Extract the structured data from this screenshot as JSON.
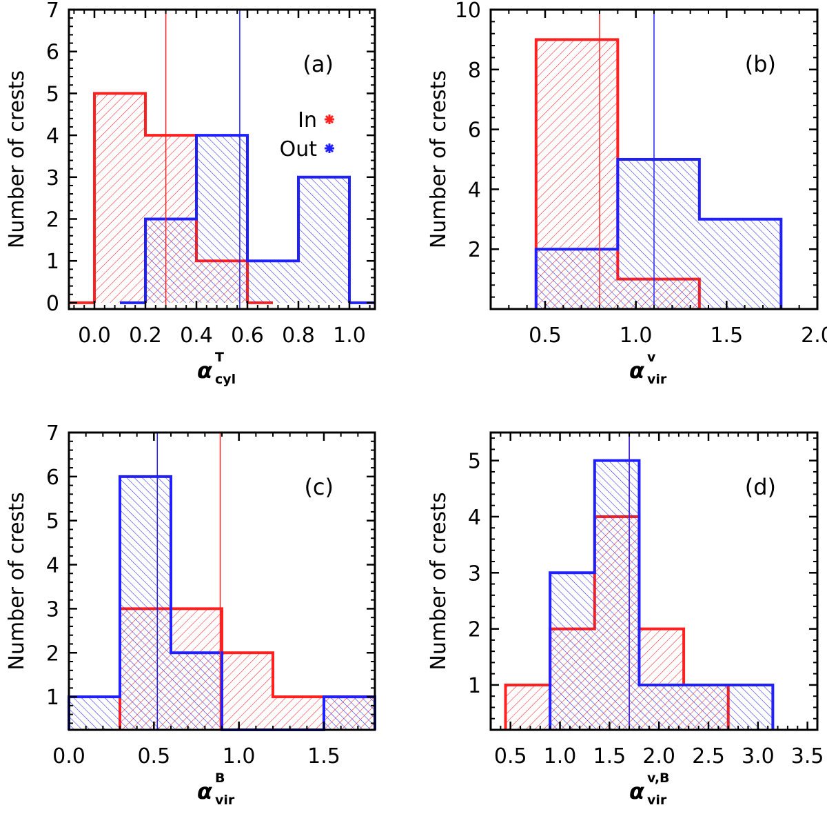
{
  "chart_data": [
    {
      "type": "bar",
      "panel": "(a)",
      "ylabel": "Number of crests",
      "xlabel": {
        "symbol": "α",
        "sup": "T",
        "sub": "cyl"
      },
      "xlim": [
        -0.1,
        1.1
      ],
      "ylim": [
        -0.15,
        7.0
      ],
      "xticks": [
        0.0,
        0.2,
        0.4,
        0.6,
        0.8,
        1.0
      ],
      "xtick_labels": [
        "0.0",
        "0.2",
        "0.4",
        "0.6",
        "0.8",
        "1.0"
      ],
      "yticks": [
        0,
        1,
        2,
        3,
        4,
        5,
        6,
        7
      ],
      "ytick_labels": [
        "0",
        "1",
        "2",
        "3",
        "4",
        "5",
        "6",
        "7"
      ],
      "legend": {
        "position": "top-right",
        "entries": [
          {
            "label": "In",
            "color": "#ff2020"
          },
          {
            "label": "Out",
            "color": "#2020ff"
          }
        ]
      },
      "series": [
        {
          "name": "In",
          "color": "#ff2020",
          "hatch": "forward",
          "edges": [
            0.0,
            0.2,
            0.4,
            0.6
          ],
          "values": [
            5,
            4,
            1
          ],
          "stub_left": 0.1,
          "stub_right": 0.1,
          "median": 0.28
        },
        {
          "name": "Out",
          "color": "#2020ff",
          "hatch": "backward",
          "edges": [
            0.2,
            0.4,
            0.6,
            0.8,
            1.0
          ],
          "values": [
            2,
            4,
            1,
            3
          ],
          "stub_left": 0.1,
          "stub_right": 0.1,
          "median": 0.57
        }
      ]
    },
    {
      "type": "bar",
      "panel": "(b)",
      "ylabel": "Number of crests",
      "xlabel": {
        "symbol": "α",
        "sup": "v",
        "sub": "vir"
      },
      "xlim": [
        0.2,
        2.0
      ],
      "ylim": [
        0.0,
        10.0
      ],
      "xticks": [
        0.5,
        1.0,
        1.5,
        2.0
      ],
      "xtick_labels": [
        "0.5",
        "1.0",
        "1.5",
        "2.0"
      ],
      "yticks": [
        2,
        4,
        6,
        8,
        10
      ],
      "ytick_labels": [
        "2",
        "4",
        "6",
        "8",
        "10"
      ],
      "series": [
        {
          "name": "In",
          "color": "#ff2020",
          "hatch": "forward",
          "edges": [
            0.45,
            0.9,
            1.35
          ],
          "values": [
            9,
            1
          ],
          "median": 0.8
        },
        {
          "name": "Out",
          "color": "#2020ff",
          "hatch": "backward",
          "edges": [
            0.45,
            0.9,
            1.35,
            1.8
          ],
          "values": [
            2,
            5,
            3
          ],
          "median": 1.1
        }
      ]
    },
    {
      "type": "bar",
      "panel": "(c)",
      "ylabel": "Number of crests",
      "xlabel": {
        "symbol": "α",
        "sup": "B",
        "sub": "vir"
      },
      "xlim": [
        0.0,
        1.8
      ],
      "ylim": [
        0.25,
        7.0
      ],
      "xticks": [
        0.0,
        0.5,
        1.0,
        1.5
      ],
      "xtick_labels": [
        "0.0",
        "0.5",
        "1.0",
        "1.5"
      ],
      "yticks": [
        1,
        2,
        3,
        4,
        5,
        6,
        7
      ],
      "ytick_labels": [
        "1",
        "2",
        "3",
        "4",
        "5",
        "6",
        "7"
      ],
      "series": [
        {
          "name": "In",
          "color": "#ff2020",
          "hatch": "forward",
          "edges": [
            0.3,
            0.6,
            0.9,
            1.2,
            1.5,
            1.8
          ],
          "values": [
            3,
            3,
            2,
            1,
            1
          ],
          "median": 0.89
        },
        {
          "name": "Out",
          "color": "#2020ff",
          "hatch": "backward",
          "edges": [
            0.0,
            0.3,
            0.6,
            0.9,
            1.2,
            1.5,
            1.8
          ],
          "values": [
            1,
            6,
            2,
            0,
            0,
            1
          ],
          "median": 0.52
        }
      ]
    },
    {
      "type": "bar",
      "panel": "(d)",
      "ylabel": "Number of crests",
      "xlabel": {
        "symbol": "α",
        "sup": "v,B",
        "sub": "vir"
      },
      "xlim": [
        0.3,
        3.6
      ],
      "ylim": [
        0.2,
        5.5
      ],
      "xticks": [
        0.5,
        1.0,
        1.5,
        2.0,
        2.5,
        3.0,
        3.5
      ],
      "xtick_labels": [
        "0.5",
        "1.0",
        "1.5",
        "2.0",
        "2.5",
        "3.0",
        "3.5"
      ],
      "yticks": [
        1,
        2,
        3,
        4,
        5
      ],
      "ytick_labels": [
        "1",
        "2",
        "3",
        "4",
        "5"
      ],
      "series": [
        {
          "name": "In",
          "color": "#ff2020",
          "hatch": "forward",
          "edges": [
            0.45,
            0.9,
            1.35,
            1.8,
            2.25,
            2.7
          ],
          "values": [
            1,
            2,
            4,
            2,
            1
          ],
          "median": 1.7
        },
        {
          "name": "Out",
          "color": "#2020ff",
          "hatch": "backward",
          "edges": [
            0.9,
            1.35,
            1.8,
            2.25,
            2.7,
            3.15
          ],
          "values": [
            3,
            5,
            1,
            1,
            1
          ],
          "median": 1.7
        }
      ]
    }
  ]
}
